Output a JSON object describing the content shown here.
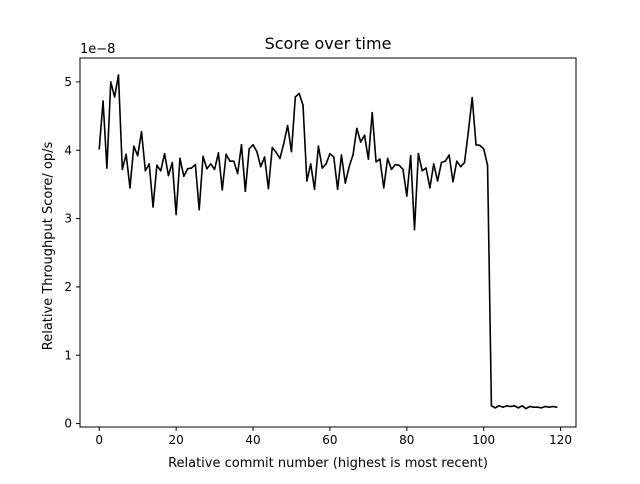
{
  "chart_data": {
    "type": "line",
    "title": "Score over time",
    "xlabel": "Relative commit number (highest is most recent)",
    "ylabel": "Relative Throughput Score/ op/s",
    "y_offset_text": "1e−8",
    "xlim": [
      -5,
      124
    ],
    "ylim": [
      -0.05,
      5.35
    ],
    "x_ticks": [
      0,
      20,
      40,
      60,
      80,
      100,
      120
    ],
    "y_ticks": [
      0,
      1,
      2,
      3,
      4,
      5
    ],
    "grid": false,
    "line_color": "#000000",
    "series": [
      {
        "x": [
          0,
          1,
          2,
          3,
          4,
          5,
          6,
          7,
          8,
          9,
          10,
          11,
          12,
          13,
          14,
          15,
          16,
          17,
          18,
          19,
          20,
          21,
          22,
          23,
          24,
          25,
          26,
          27,
          28,
          29,
          30,
          31,
          32,
          33,
          34,
          35,
          36,
          37,
          38,
          39,
          40,
          41,
          42,
          43,
          44,
          45,
          46,
          47,
          48,
          49,
          50,
          51,
          52,
          53,
          54,
          55,
          56,
          57,
          58,
          59,
          60,
          61,
          62,
          63,
          64,
          65,
          66,
          67,
          68,
          69,
          70,
          71,
          72,
          73,
          74,
          75,
          76,
          77,
          78,
          79,
          80,
          81,
          82,
          83,
          84,
          85,
          86,
          87,
          88,
          89,
          90,
          91,
          92,
          93,
          94,
          95,
          96,
          97,
          98,
          99,
          100,
          101,
          102,
          103,
          104,
          105,
          106,
          107,
          108,
          109,
          110,
          111,
          112,
          113,
          114,
          115,
          116,
          117,
          118,
          119
        ],
        "values": [
          4.02,
          4.72,
          3.74,
          5.0,
          4.78,
          5.1,
          3.72,
          3.94,
          3.45,
          4.06,
          3.92,
          4.27,
          3.7,
          3.8,
          3.17,
          3.78,
          3.7,
          3.95,
          3.63,
          3.82,
          3.06,
          3.88,
          3.62,
          3.73,
          3.74,
          3.79,
          3.13,
          3.91,
          3.73,
          3.8,
          3.72,
          3.96,
          3.42,
          3.94,
          3.84,
          3.84,
          3.66,
          4.08,
          3.4,
          4.02,
          4.08,
          3.98,
          3.76,
          3.9,
          3.44,
          4.04,
          3.97,
          3.88,
          4.1,
          4.36,
          3.98,
          4.78,
          4.83,
          4.66,
          3.55,
          3.8,
          3.43,
          4.06,
          3.74,
          3.8,
          3.95,
          3.9,
          3.43,
          3.93,
          3.52,
          3.76,
          3.93,
          4.32,
          4.12,
          4.22,
          3.87,
          4.55,
          3.83,
          3.87,
          3.45,
          3.88,
          3.72,
          3.79,
          3.78,
          3.72,
          3.33,
          3.92,
          2.84,
          3.95,
          3.7,
          3.74,
          3.45,
          3.8,
          3.55,
          3.82,
          3.84,
          3.93,
          3.54,
          3.84,
          3.76,
          3.82,
          4.27,
          4.77,
          4.08,
          4.07,
          4.02,
          3.78,
          0.26,
          0.23,
          0.26,
          0.24,
          0.26,
          0.25,
          0.26,
          0.23,
          0.26,
          0.22,
          0.25,
          0.24,
          0.24,
          0.23,
          0.25,
          0.24,
          0.25,
          0.24
        ]
      }
    ]
  }
}
